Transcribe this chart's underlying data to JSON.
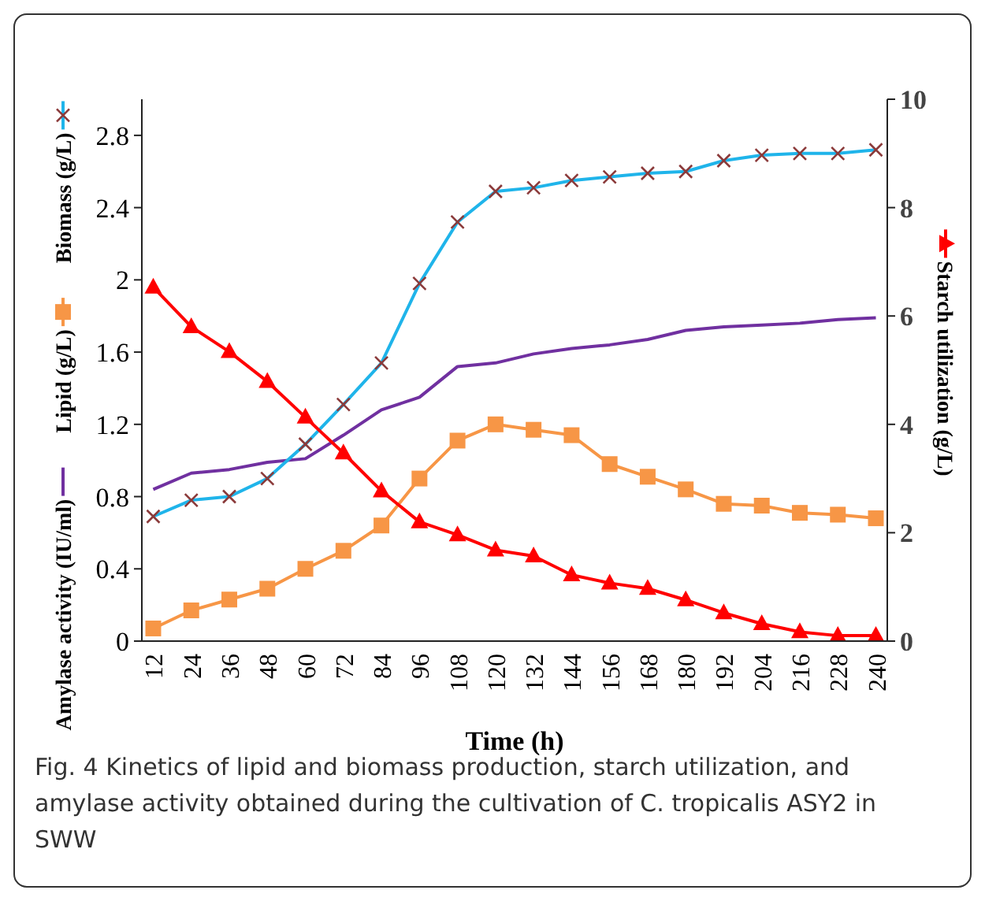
{
  "chart_data": {
    "type": "line",
    "categories": [
      "12",
      "24",
      "36",
      "48",
      "60",
      "72",
      "84",
      "96",
      "108",
      "120",
      "132",
      "144",
      "156",
      "168",
      "180",
      "192",
      "204",
      "216",
      "228",
      "240"
    ],
    "xlabel": "Time (h)",
    "ylim": [
      0,
      3
    ],
    "yticks": [
      0,
      0.4,
      0.8,
      1.2,
      1.6,
      2,
      2.4,
      2.8
    ],
    "y2lim": [
      0,
      10
    ],
    "y2ticks": [
      0,
      2,
      4,
      6,
      8,
      10
    ],
    "legend": "left",
    "series": [
      {
        "name": "Amylase activity (IU/ml)",
        "color": "#7030a0",
        "marker": "none",
        "values": [
          0.84,
          0.93,
          0.95,
          0.99,
          1.01,
          1.14,
          1.28,
          1.35,
          1.52,
          1.54,
          1.59,
          1.62,
          1.64,
          1.67,
          1.72,
          1.74,
          1.75,
          1.76,
          1.78,
          1.79
        ]
      },
      {
        "name": "Lipid (g/L)",
        "color": "#f79646",
        "marker": "square",
        "values": [
          0.07,
          0.17,
          0.23,
          0.29,
          0.4,
          0.5,
          0.64,
          0.9,
          1.11,
          1.2,
          1.17,
          1.14,
          0.98,
          0.91,
          0.84,
          0.76,
          0.75,
          0.71,
          0.7,
          0.68
        ]
      },
      {
        "name": "Biomass (g/L)",
        "color": "#1fb4ea",
        "marker": "cross",
        "values": [
          0.69,
          0.78,
          0.8,
          0.9,
          1.09,
          1.31,
          1.54,
          1.98,
          2.32,
          2.49,
          2.51,
          2.55,
          2.57,
          2.59,
          2.6,
          2.66,
          2.69,
          2.7,
          2.7,
          2.72
        ]
      },
      {
        "name": "Starch utilization (g/L)",
        "color": "#ff0000",
        "marker": "triangle",
        "axis": "y2",
        "values": [
          6.53,
          5.8,
          5.34,
          4.79,
          4.13,
          3.47,
          2.77,
          2.2,
          1.96,
          1.68,
          1.57,
          1.22,
          1.07,
          0.97,
          0.76,
          0.52,
          0.32,
          0.17,
          0.1,
          0.1
        ]
      }
    ],
    "annotations": [
      "Fig. 4  Kinetics of lipid and biomass production, starch utilization, and amylase activity obtained during the cultivation of C. tropicalis ASY2 in SWW"
    ]
  }
}
